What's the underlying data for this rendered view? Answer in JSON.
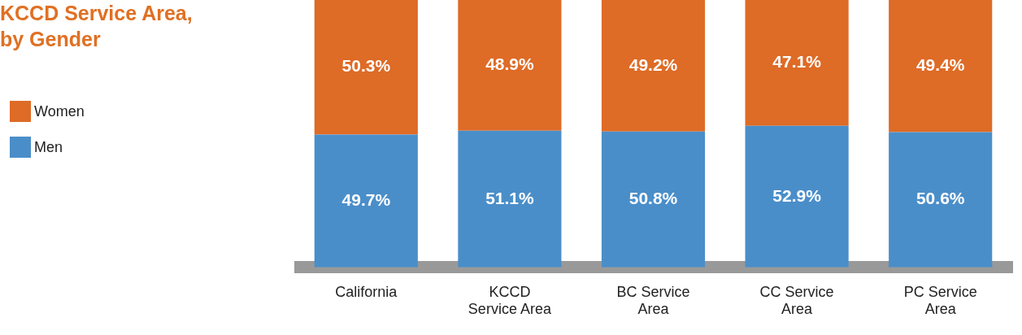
{
  "chart_data": {
    "type": "bar",
    "title": "KCCD Service Area,\nby Gender",
    "categories": [
      "California",
      "KCCD\nService Area",
      "BC Service\nArea",
      "CC Service\nArea",
      "PC Service\nArea"
    ],
    "stacked": true,
    "legend": "top left",
    "grid": false,
    "series": [
      {
        "name": "Men",
        "color": "#4a8ec9",
        "values": [
          49.7,
          51.1,
          50.8,
          52.9,
          50.6
        ],
        "value_labels": [
          "49.7%",
          "51.1%",
          "50.8%",
          "52.9%",
          "50.6%"
        ]
      },
      {
        "name": "Women",
        "color": "#de6b26",
        "values": [
          50.3,
          48.9,
          49.2,
          47.1,
          49.4
        ],
        "value_labels": [
          "50.3%",
          "48.9%",
          "49.2%",
          "47.1%",
          "49.4%"
        ]
      }
    ]
  }
}
